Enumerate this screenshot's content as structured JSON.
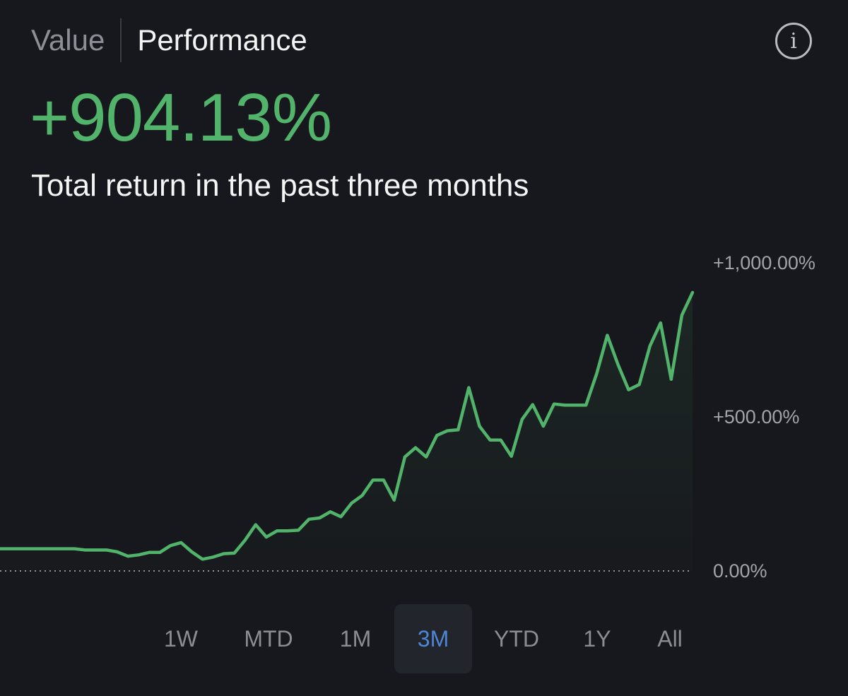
{
  "header": {
    "tabs": [
      {
        "label": "Value",
        "active": false
      },
      {
        "label": "Performance",
        "active": true
      }
    ],
    "info_icon": "info-icon",
    "info_glyph": "i"
  },
  "summary": {
    "total_return": "+904.13%",
    "description": "Total return in the past three months"
  },
  "colors": {
    "background": "#17181d",
    "positive": "#52b36a",
    "active_range": "#4d86d6",
    "active_range_bg": "#23252d",
    "muted_text": "#8b8d93"
  },
  "chart_data": {
    "type": "area",
    "title": "",
    "xlabel": "",
    "ylabel": "",
    "ylim": [
      0,
      1000
    ],
    "y_ticks": [
      {
        "value": 1000,
        "label": "+1,000.00%"
      },
      {
        "value": 500,
        "label": "+500.00%"
      },
      {
        "value": 0,
        "label": "0.00%"
      }
    ],
    "baseline": {
      "value": 0,
      "style": "dotted"
    },
    "grid": false,
    "legend": "none",
    "series": [
      {
        "color": "#52b36a",
        "unit": "%",
        "values": [
          72,
          72,
          72,
          72,
          72,
          72,
          72,
          72,
          68,
          68,
          68,
          62,
          48,
          52,
          60,
          60,
          82,
          92,
          62,
          38,
          45,
          56,
          58,
          100,
          150,
          110,
          130,
          130,
          132,
          168,
          172,
          192,
          176,
          220,
          245,
          295,
          295,
          230,
          370,
          400,
          370,
          440,
          455,
          458,
          595,
          470,
          425,
          425,
          372,
          492,
          540,
          470,
          542,
          538,
          538,
          538,
          640,
          765,
          670,
          588,
          605,
          730,
          805,
          622,
          830,
          904
        ]
      }
    ]
  },
  "time_ranges": {
    "selected": "3M",
    "options": [
      "1W",
      "MTD",
      "1M",
      "3M",
      "YTD",
      "1Y",
      "All"
    ]
  }
}
